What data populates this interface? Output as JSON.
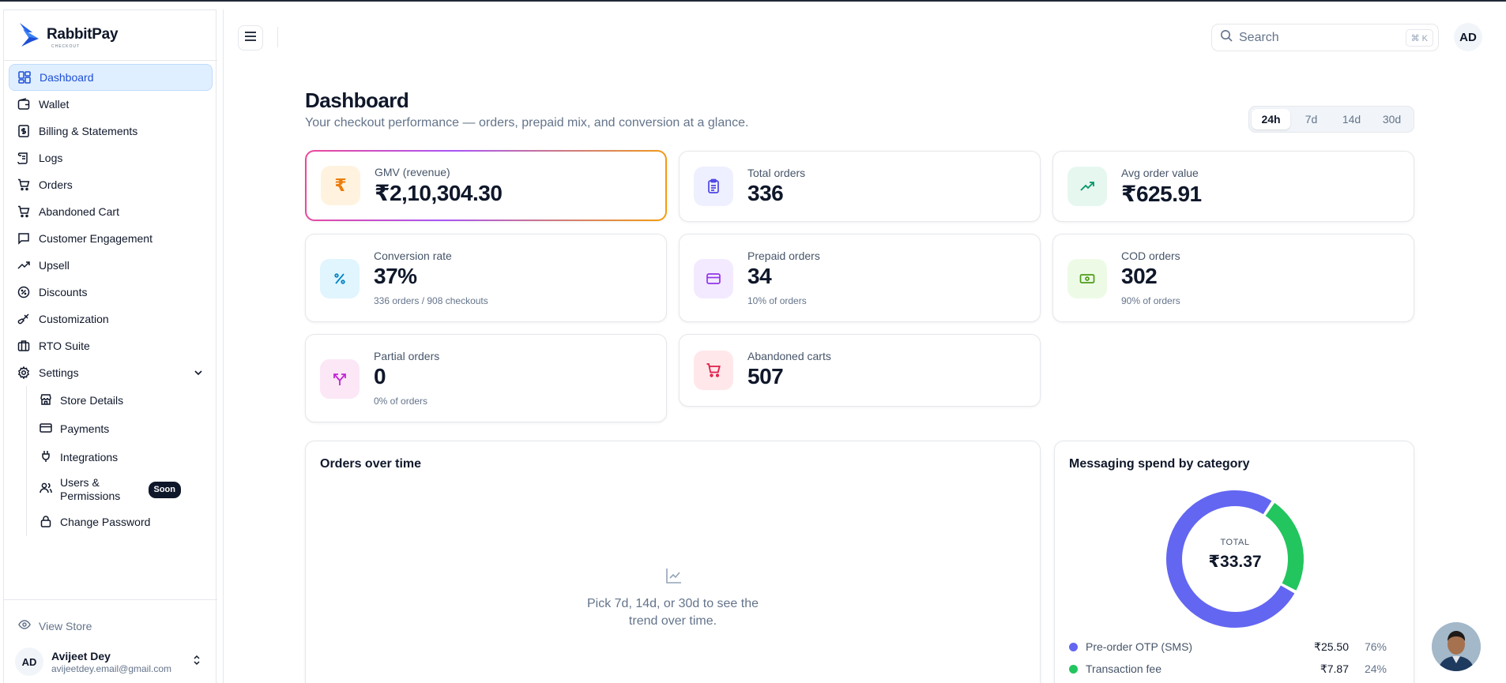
{
  "brand": {
    "name": "RabbitPay",
    "sub": "CHECKOUT",
    "color": "#2563eb"
  },
  "sidebar": {
    "items": [
      {
        "label": "Dashboard",
        "icon": "dashboard-icon",
        "active": true
      },
      {
        "label": "Wallet",
        "icon": "wallet-icon"
      },
      {
        "label": "Billing & Statements",
        "icon": "receipt-icon"
      },
      {
        "label": "Logs",
        "icon": "scroll-icon"
      },
      {
        "label": "Orders",
        "icon": "cart-icon"
      },
      {
        "label": "Abandoned Cart",
        "icon": "cart-x-icon"
      },
      {
        "label": "Customer Engagement",
        "icon": "message-icon"
      },
      {
        "label": "Upsell",
        "icon": "trending-up-icon"
      },
      {
        "label": "Discounts",
        "icon": "discount-icon"
      },
      {
        "label": "Customization",
        "icon": "paintbrush-icon"
      },
      {
        "label": "RTO Suite",
        "icon": "briefcase-icon"
      },
      {
        "label": "Settings",
        "icon": "gear-icon"
      }
    ],
    "settings_sub": [
      {
        "label": "Store Details",
        "icon": "store-icon"
      },
      {
        "label": "Payments",
        "icon": "credit-card-icon"
      },
      {
        "label": "Integrations",
        "icon": "plug-icon"
      },
      {
        "label": "Users & Permissions",
        "icon": "users-icon",
        "badge": "Soon"
      },
      {
        "label": "Change Password",
        "icon": "lock-icon"
      }
    ],
    "view_store": "View Store",
    "user": {
      "initials": "AD",
      "name": "Avijeet Dey",
      "email": "avijeetdey.email@gmail.com"
    }
  },
  "header": {
    "search_placeholder": "Search",
    "shortcut": "⌘ K",
    "avatar": "AD"
  },
  "page": {
    "title": "Dashboard",
    "subtitle": "Your checkout performance — orders, prepaid mix, and conversion at a glance.",
    "ranges": [
      "24h",
      "7d",
      "14d",
      "30d"
    ],
    "active_range": "24h"
  },
  "kpis": [
    {
      "label": "GMV (revenue)",
      "value": "₹2,10,304.30",
      "note": "",
      "icon": "rupee-icon",
      "bg": "#fff3e0",
      "color": "#ea7d0c"
    },
    {
      "label": "Total orders",
      "value": "336",
      "note": "",
      "icon": "clipboard-icon",
      "bg": "#eef0ff",
      "color": "#4f46e5"
    },
    {
      "label": "Avg order value",
      "value": "₹625.91",
      "note": "",
      "icon": "trending-up-icon",
      "bg": "#e6f7ef",
      "color": "#059669"
    },
    {
      "label": "Conversion rate",
      "value": "37%",
      "note": "336 orders / 908 checkouts",
      "icon": "percent-icon",
      "bg": "#e0f5fe",
      "color": "#0284c7"
    },
    {
      "label": "Prepaid orders",
      "value": "34",
      "note": "10% of orders",
      "icon": "credit-card-icon",
      "bg": "#f3eaff",
      "color": "#9333ea"
    },
    {
      "label": "COD orders",
      "value": "302",
      "note": "90% of orders",
      "icon": "banknote-icon",
      "bg": "#edfbe6",
      "color": "#4d9a1a"
    },
    {
      "label": "Partial orders",
      "value": "0",
      "note": "0% of orders",
      "icon": "split-icon",
      "bg": "#fce7f6",
      "color": "#c026d3"
    },
    {
      "label": "Abandoned carts",
      "value": "507",
      "note": "",
      "icon": "cart-icon",
      "bg": "#ffe7ea",
      "color": "#e11d48"
    }
  ],
  "orders_panel": {
    "title": "Orders over time",
    "empty_line1": "Pick 7d, 14d, or 30d to see the",
    "empty_line2": "trend over time."
  },
  "spend_panel": {
    "title": "Messaging spend by category",
    "center_label": "TOTAL",
    "center_value": "₹33.37",
    "legend": [
      {
        "name": "Pre-order OTP (SMS)",
        "value": "₹25.50",
        "pct": "76%"
      },
      {
        "name": "Transaction fee",
        "value": "₹7.87",
        "pct": "24%"
      }
    ]
  },
  "chart_data": {
    "type": "pie",
    "title": "Messaging spend by category",
    "categories": [
      "Pre-order OTP (SMS)",
      "Transaction fee"
    ],
    "values": [
      25.5,
      7.87
    ],
    "colors": [
      "#6366f1",
      "#22c55e"
    ]
  }
}
